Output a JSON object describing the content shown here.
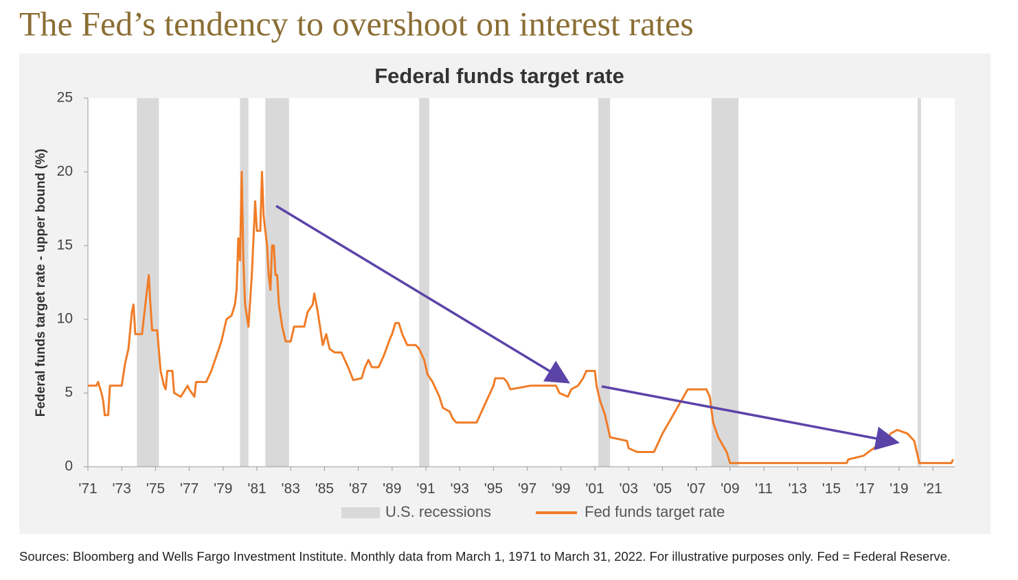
{
  "header": {
    "title": "The Fed’s tendency to overshoot on interest rates"
  },
  "chart_data": {
    "type": "line",
    "title": "Federal funds target rate",
    "y_label": "Federal funds target rate - upper bound (%)",
    "x": [
      1971,
      1971.5,
      1971.6,
      1971.8,
      1971.9,
      1972.0,
      1972.2,
      1972.3,
      1973.0,
      1973.2,
      1973.4,
      1973.6,
      1973.7,
      1973.8,
      1974.2,
      1974.5,
      1974.6,
      1974.7,
      1974.8,
      1975.1,
      1975.3,
      1975.5,
      1975.6,
      1975.7,
      1976.0,
      1976.1,
      1976.5,
      1976.9,
      1977.0,
      1977.3,
      1977.4,
      1978.0,
      1978.3,
      1978.6,
      1978.9,
      1979.2,
      1979.5,
      1979.7,
      1979.8,
      1979.9,
      1980.0,
      1980.1,
      1980.2,
      1980.3,
      1980.5,
      1980.7,
      1980.9,
      1981.0,
      1981.2,
      1981.3,
      1981.4,
      1981.6,
      1981.7,
      1981.8,
      1981.9,
      1982.0,
      1982.1,
      1982.2,
      1982.3,
      1982.5,
      1982.7,
      1983.0,
      1983.2,
      1983.8,
      1984.0,
      1984.3,
      1984.4,
      1984.6,
      1984.8,
      1984.9,
      1985.1,
      1985.3,
      1985.6,
      1986.0,
      1986.4,
      1986.7,
      1987.2,
      1987.4,
      1987.6,
      1987.8,
      1988.2,
      1988.5,
      1988.9,
      1989.0,
      1989.2,
      1989.4,
      1989.6,
      1989.9,
      1990.4,
      1990.6,
      1990.9,
      1991.1,
      1991.4,
      1991.8,
      1992.0,
      1992.4,
      1992.6,
      1992.8,
      1994.0,
      1994.3,
      1994.7,
      1995.0,
      1995.1,
      1995.6,
      1995.8,
      1996.0,
      1997.2,
      1998.7,
      1998.9,
      1999.4,
      1999.6,
      2000.0,
      2000.3,
      2000.5,
      2001.0,
      2001.1,
      2001.3,
      2001.6,
      2001.9,
      2002.9,
      2003.0,
      2003.5,
      2004.5,
      2005.0,
      2005.5,
      2006.0,
      2006.5,
      2007.6,
      2007.8,
      2008.0,
      2008.3,
      2008.8,
      2009.0,
      2015.9,
      2016.0,
      2016.9,
      2017.2,
      2017.5,
      2017.9,
      2018.2,
      2018.5,
      2018.9,
      2019.5,
      2019.7,
      2019.9,
      2020.2,
      2022.1,
      2022.2
    ],
    "series": [
      {
        "name": "Fed funds target rate",
        "color": "#f07c27",
        "values": [
          5.5,
          5.5,
          5.75,
          5,
          4.5,
          3.5,
          3.5,
          5.5,
          5.5,
          7,
          8,
          10.5,
          11,
          9,
          9,
          12,
          13,
          11,
          9.25,
          9.25,
          6.5,
          5.5,
          5.25,
          6.5,
          6.5,
          5,
          4.75,
          5.5,
          5.25,
          4.75,
          5.75,
          5.75,
          6.5,
          7.5,
          8.5,
          10,
          10.25,
          11,
          12,
          15.5,
          14,
          20,
          14,
          11,
          9.5,
          13,
          18,
          16,
          16,
          20,
          17,
          15,
          13,
          12,
          15,
          15,
          13,
          13,
          11,
          9.5,
          8.5,
          8.5,
          9.5,
          9.5,
          10.5,
          11,
          11.75,
          10.5,
          9,
          8.25,
          9,
          8,
          7.75,
          7.75,
          6.75,
          5.88,
          6,
          6.75,
          7.25,
          6.75,
          6.75,
          7.5,
          8.75,
          9,
          9.75,
          9.75,
          9,
          8.25,
          8.25,
          8,
          7.25,
          6.25,
          5.75,
          4.75,
          4,
          3.75,
          3.25,
          3,
          3,
          3.75,
          4.75,
          5.5,
          6,
          6,
          5.75,
          5.25,
          5.5,
          5.5,
          5,
          4.75,
          5.25,
          5.5,
          6,
          6.5,
          6.5,
          5.5,
          4.5,
          3.5,
          2,
          1.75,
          1.25,
          1,
          1,
          2.25,
          3.25,
          4.25,
          5.25,
          5.25,
          4.75,
          3,
          2,
          1,
          0.25,
          0.25,
          0.5,
          0.75,
          1,
          1.25,
          1.5,
          1.75,
          2.25,
          2.5,
          2.25,
          2,
          1.75,
          0.25,
          0.25,
          0.5
        ]
      }
    ],
    "recessions": {
      "name": "U.S. recessions",
      "color": "#d9d9d9",
      "periods": [
        [
          1973.9,
          1975.2
        ],
        [
          1980.0,
          1980.5
        ],
        [
          1981.5,
          1982.9
        ],
        [
          1990.6,
          1991.2
        ],
        [
          2001.2,
          2001.9
        ],
        [
          2007.9,
          2009.5
        ],
        [
          2020.1,
          2020.3
        ]
      ]
    },
    "xlim": [
      1971,
      2022.3
    ],
    "xticks": [
      {
        "value": 1971,
        "label": "'71"
      },
      {
        "value": 1973,
        "label": "'73"
      },
      {
        "value": 1975,
        "label": "'75"
      },
      {
        "value": 1977,
        "label": "'77"
      },
      {
        "value": 1979,
        "label": "'79"
      },
      {
        "value": 1981,
        "label": "'81"
      },
      {
        "value": 1983,
        "label": "'83"
      },
      {
        "value": 1985,
        "label": "'85"
      },
      {
        "value": 1987,
        "label": "'87"
      },
      {
        "value": 1989,
        "label": "'89"
      },
      {
        "value": 1991,
        "label": "'91"
      },
      {
        "value": 1993,
        "label": "'93"
      },
      {
        "value": 1995,
        "label": "'95"
      },
      {
        "value": 1997,
        "label": "'97"
      },
      {
        "value": 1999,
        "label": "'99"
      },
      {
        "value": 2001,
        "label": "'01"
      },
      {
        "value": 2003,
        "label": "'03"
      },
      {
        "value": 2005,
        "label": "'05"
      },
      {
        "value": 2007,
        "label": "'07"
      },
      {
        "value": 2009,
        "label": "'09"
      },
      {
        "value": 2011,
        "label": "'11"
      },
      {
        "value": 2013,
        "label": "'13"
      },
      {
        "value": 2015,
        "label": "'15"
      },
      {
        "value": 2017,
        "label": "'17"
      },
      {
        "value": 2019,
        "label": "'19"
      },
      {
        "value": 2021,
        "label": "'21"
      }
    ],
    "ylim": [
      0,
      25
    ],
    "yticks": [
      0,
      5,
      10,
      15,
      20,
      25
    ]
  },
  "footer": {
    "source": "Sources: Bloomberg and Wells Fargo Investment Institute. Monthly data from March 1, 1971 to March 31, 2022. For illustrative purposes only. Fed = Federal Reserve."
  }
}
